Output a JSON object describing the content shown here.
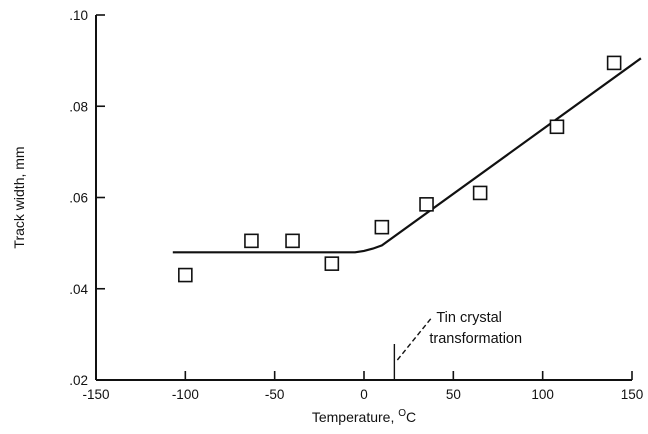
{
  "chart_data": {
    "type": "scatter",
    "title": "",
    "xlabel": "Temperature, ",
    "xlabel_unit": "C",
    "xlabel_unit_sup": "O",
    "ylabel": "Track width, mm",
    "xlim": [
      -150,
      150
    ],
    "ylim": [
      0.02,
      0.1
    ],
    "x_ticks": [
      -150,
      -100,
      -50,
      0,
      50,
      100,
      150
    ],
    "x_tick_labels": [
      "-150",
      "-100",
      "-50",
      "0",
      "50",
      "100",
      "150"
    ],
    "y_ticks": [
      0.02,
      0.04,
      0.06,
      0.08,
      0.1
    ],
    "y_tick_labels": [
      ".02",
      ".04",
      ".06",
      ".08",
      ".10"
    ],
    "grid": false,
    "points": {
      "x": [
        -100,
        -63,
        -40,
        -18,
        10,
        35,
        65,
        108,
        140
      ],
      "y": [
        0.043,
        0.0505,
        0.0505,
        0.0455,
        0.0535,
        0.0585,
        0.061,
        0.0755,
        0.0895
      ]
    },
    "fit_line": {
      "x": [
        -107,
        -5,
        0,
        5,
        10,
        155
      ],
      "y": [
        0.048,
        0.048,
        0.0483,
        0.0488,
        0.0495,
        0.0905
      ]
    },
    "annotation": {
      "line1": "Tin crystal",
      "line2": "transformation",
      "x": 17
    }
  }
}
